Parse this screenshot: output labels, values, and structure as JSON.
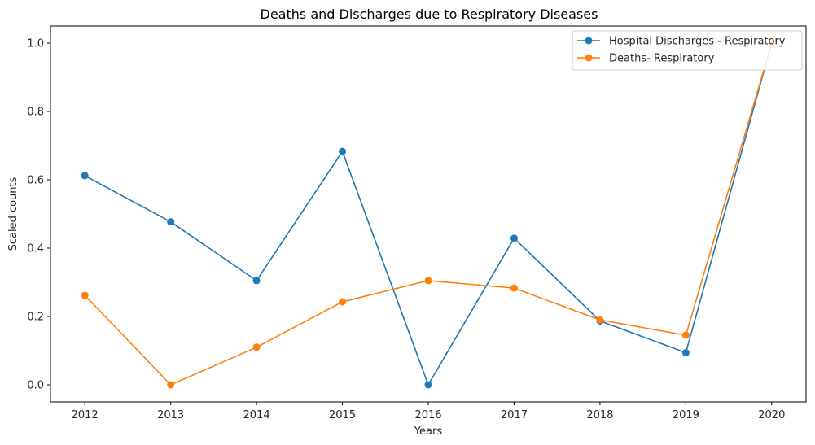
{
  "chart_data": {
    "type": "line",
    "title": "Deaths and Discharges due to Respiratory Diseases",
    "xlabel": "Years",
    "ylabel": "Scaled counts",
    "x": [
      2012,
      2013,
      2014,
      2015,
      2016,
      2017,
      2018,
      2019,
      2020
    ],
    "xlim": [
      2011.6,
      2020.4
    ],
    "ylim": [
      -0.05,
      1.05
    ],
    "yticks": [
      0.0,
      0.2,
      0.4,
      0.6,
      0.8,
      1.0
    ],
    "ytick_labels": [
      "0.0",
      "0.2",
      "0.4",
      "0.6",
      "0.8",
      "1.0"
    ],
    "xtick_labels": [
      "2012",
      "2013",
      "2014",
      "2015",
      "2016",
      "2017",
      "2018",
      "2019",
      "2020"
    ],
    "grid": false,
    "legend_position": "top-right",
    "series": [
      {
        "name": "Hospital Discharges - Respiratory",
        "color": "#1f77b4",
        "marker": "circle",
        "values": [
          0.612,
          0.477,
          0.305,
          0.683,
          0.0,
          0.429,
          0.187,
          0.094,
          1.0
        ]
      },
      {
        "name": "Deaths- Respiratory",
        "color": "#ff7f0e",
        "marker": "circle",
        "values": [
          0.262,
          0.0,
          0.11,
          0.243,
          0.305,
          0.283,
          0.19,
          0.145,
          1.0
        ]
      }
    ]
  }
}
